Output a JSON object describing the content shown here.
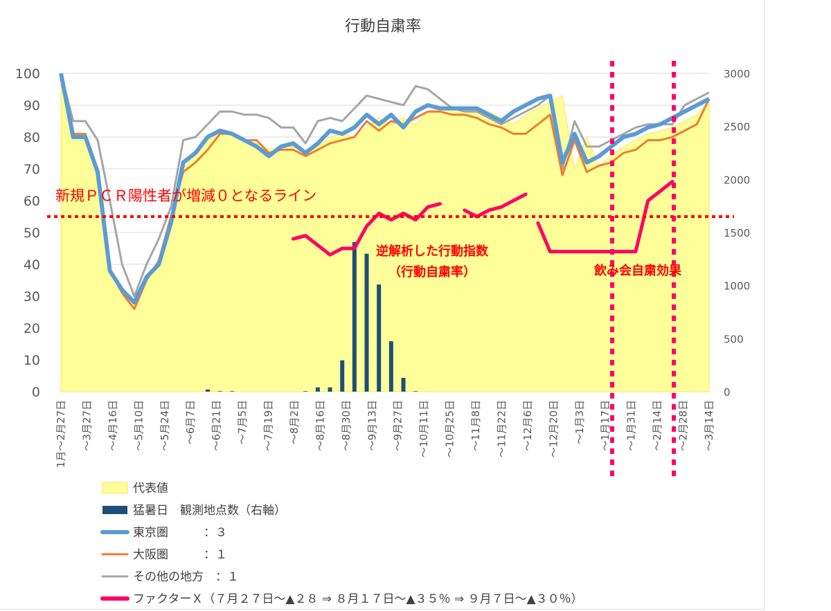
{
  "chart_data": {
    "type": "line",
    "title": "行動自粛率",
    "y_left": {
      "min": 0,
      "max": 100,
      "ticks": [
        0,
        10,
        20,
        30,
        40,
        50,
        60,
        70,
        80,
        90,
        100
      ]
    },
    "y_right": {
      "min": 0,
      "max": 3000,
      "ticks": [
        0,
        500,
        1000,
        1500,
        2000,
        2500,
        3000
      ]
    },
    "x_labels": [
      "1月～2月27日",
      "～3月27日",
      "～4月16日",
      "～5月10日",
      "～5月24日",
      "～6月7日",
      "～6月21日",
      "～7月5日",
      "～7月19日",
      "～8月2日",
      "～8月16日",
      "～8月30日",
      "～9月13日",
      "～9月27日",
      "～10月11日",
      "～10月25日",
      "～11月8日",
      "～11月22日",
      "～12月6日",
      "～12月20日",
      "～1月3日",
      "～1月17日",
      "～1月31日",
      "～2月14日",
      "～2月28日",
      "～3月14日"
    ],
    "series": [
      {
        "name": "代表値",
        "color": "#ffff99",
        "axis": "left",
        "values": [
          100,
          81,
          81,
          68,
          39,
          33,
          28,
          35,
          42,
          56,
          70,
          75,
          80,
          82,
          81,
          79,
          78,
          76,
          77,
          77,
          75,
          77,
          80,
          81,
          80,
          83,
          86,
          84,
          86,
          84,
          88,
          89,
          89,
          89,
          88,
          88,
          86,
          84,
          87,
          89,
          91,
          93,
          70,
          80,
          71,
          74,
          77,
          79,
          81,
          82,
          83,
          85,
          87,
          91
        ]
      },
      {
        "name": "猛暑日　観測地点数（右軸）",
        "color": "#1f4e79",
        "axis": "right",
        "type": "bar",
        "values": [
          0,
          0,
          0,
          0,
          0,
          0,
          0,
          0,
          0,
          0,
          0,
          0,
          20,
          5,
          5,
          0,
          0,
          0,
          0,
          0,
          5,
          40,
          40,
          295,
          1410,
          1300,
          1010,
          475,
          130,
          5,
          0,
          0,
          0,
          0,
          0,
          0,
          0,
          0,
          0,
          0,
          0,
          0,
          0,
          0,
          0,
          0,
          0,
          0,
          0,
          0,
          0,
          0,
          0,
          0
        ]
      },
      {
        "name": "東京圏　　　：３",
        "color": "#5b9bd5",
        "axis": "left",
        "values": [
          100,
          80,
          80,
          69,
          38,
          32,
          28,
          36,
          40,
          53,
          72,
          75,
          80,
          82,
          81,
          79,
          77,
          74,
          77,
          78,
          75,
          78,
          82,
          81,
          83,
          87,
          84,
          87,
          83,
          88,
          90,
          89,
          89,
          89,
          89,
          87,
          85,
          88,
          90,
          92,
          93,
          72,
          81,
          72,
          74,
          77,
          80,
          81,
          83,
          84,
          86,
          88,
          90,
          92
        ]
      },
      {
        "name": "大阪圏　　　：１",
        "color": "#ed7d31",
        "axis": "left",
        "values": [
          100,
          81,
          81,
          68,
          38,
          31,
          26,
          35,
          41,
          55,
          69,
          72,
          76,
          81,
          81,
          79,
          79,
          75,
          76,
          76,
          74,
          76,
          78,
          79,
          80,
          85,
          82,
          85,
          84,
          86,
          88,
          88,
          87,
          87,
          86,
          84,
          83,
          81,
          81,
          84,
          87,
          68,
          79,
          69,
          71,
          72,
          75,
          76,
          79,
          79,
          80,
          82,
          84,
          92
        ]
      },
      {
        "name": "その他の地方　：１",
        "color": "#a5a5a5",
        "axis": "left",
        "values": [
          100,
          85,
          85,
          79,
          60,
          40,
          30,
          40,
          48,
          58,
          79,
          80,
          84,
          88,
          88,
          87,
          87,
          86,
          83,
          83,
          78,
          85,
          86,
          85,
          89,
          93,
          92,
          91,
          90,
          96,
          95,
          92,
          89,
          88,
          88,
          86,
          84,
          86,
          88,
          90,
          93,
          70,
          85,
          77,
          77,
          79,
          81,
          83,
          84,
          84,
          84,
          90,
          92,
          94
        ]
      },
      {
        "name": "ファクターＸ（７月２７日～▲２８ ⇒ ８月１７日～▲３５％ ⇒ ９月７日～▲３０％）",
        "color": "#ff0066",
        "axis": "left",
        "type": "segments",
        "segments": [
          {
            "start": 19,
            "values": [
              48,
              49,
              46,
              43,
              45,
              45,
              52,
              56,
              54,
              56,
              54,
              58,
              59
            ]
          },
          {
            "start": 33,
            "values": [
              57,
              55,
              57,
              58,
              60,
              62
            ]
          },
          {
            "start": 39,
            "values": [
              53,
              44,
              44,
              44,
              44,
              44,
              44,
              44,
              44,
              60,
              63,
              66
            ]
          }
        ]
      }
    ]
  },
  "annotations": {
    "line_label": "新規ＰＣＲ陽性者が増減０となるライン",
    "line_value": 55,
    "label_behavior": "逆解析した行動指数",
    "label_behavior2": "（行動自粛率）",
    "label_party": "飲み会自粛効果"
  },
  "legend": [
    {
      "key": "rep",
      "label": "代表値"
    },
    {
      "key": "hot",
      "label": "猛暑日　観測地点数（右軸）"
    },
    {
      "key": "tokyo",
      "label": "東京圏　　　：３"
    },
    {
      "key": "osaka",
      "label": "大阪圏　　　：１"
    },
    {
      "key": "other",
      "label": "その他の地方　：１"
    },
    {
      "key": "factor",
      "label": "ファクターＸ（７月２７日～▲２８ ⇒ ８月１７日～▲３５％ ⇒ ９月７日～▲３０％）"
    }
  ]
}
